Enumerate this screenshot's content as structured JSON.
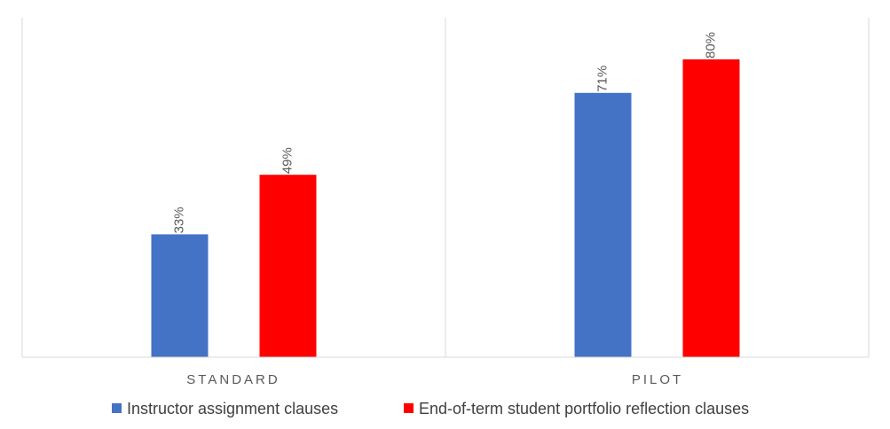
{
  "chart_data": {
    "type": "bar",
    "title": "",
    "xlabel": "",
    "ylabel": "",
    "categories": [
      "STANDARD",
      "PILOT"
    ],
    "series": [
      {
        "name": "Instructor assignment clauses",
        "color": "#4472C4",
        "values": [
          33,
          71
        ],
        "labels": [
          "33%",
          "71%"
        ]
      },
      {
        "name": "End-of-term student portfolio reflection clauses",
        "color": "#FF0000",
        "values": [
          49,
          80
        ],
        "labels": [
          "49%",
          "80%"
        ]
      }
    ],
    "ylim": [
      0,
      100
    ],
    "grid": false,
    "legend": "bottom",
    "value_format": "percent"
  }
}
